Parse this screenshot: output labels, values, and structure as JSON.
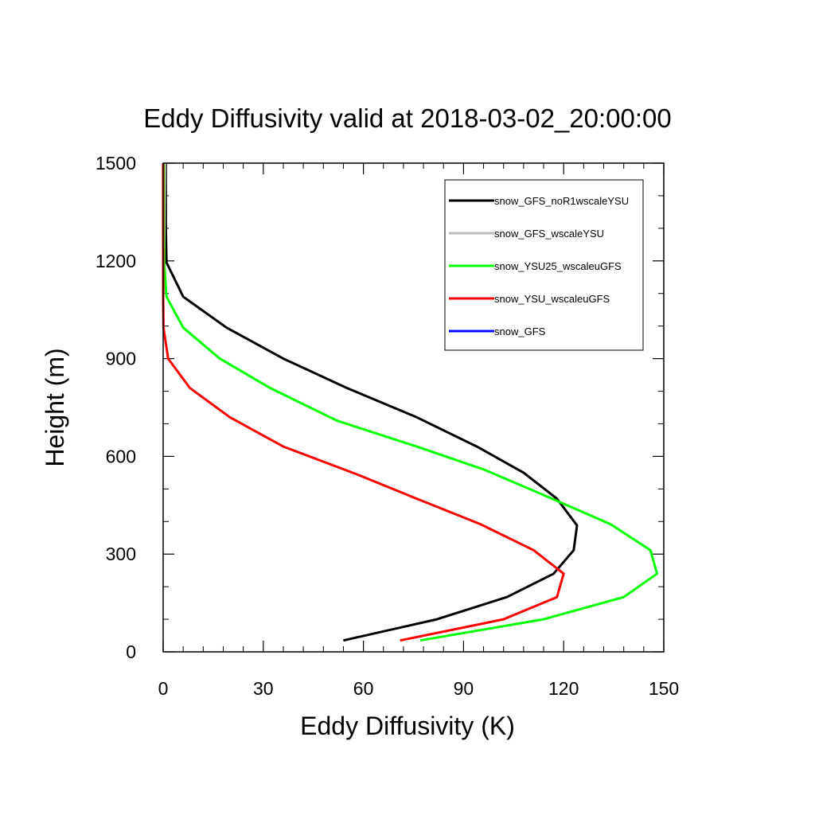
{
  "chart_data": {
    "type": "line",
    "title": "Eddy Diffusivity valid at 2018-03-02_20:00:00",
    "xlabel": "Eddy Diffusivity (K)",
    "ylabel": "Height (m)",
    "xlim": [
      0,
      150
    ],
    "ylim": [
      0,
      1500
    ],
    "xticks": [
      "0",
      "30",
      "60",
      "90",
      "120",
      "150"
    ],
    "yticks": [
      "0",
      "300",
      "600",
      "900",
      "1200",
      "1500"
    ],
    "grid": false,
    "legend_position": "top-right",
    "series": [
      {
        "name": "snow_GFS_noR1wscaleYSU",
        "color": "#000000",
        "points": [
          [
            54,
            35
          ],
          [
            82,
            100
          ],
          [
            103,
            168
          ],
          [
            117,
            240
          ],
          [
            123,
            312
          ],
          [
            124,
            388
          ],
          [
            118,
            470
          ],
          [
            108,
            550
          ],
          [
            94,
            630
          ],
          [
            76,
            720
          ],
          [
            55,
            810
          ],
          [
            36,
            900
          ],
          [
            19,
            995
          ],
          [
            6,
            1090
          ],
          [
            1,
            1195
          ],
          [
            0.8,
            1300
          ],
          [
            0.8,
            1400
          ],
          [
            0.8,
            1500
          ]
        ]
      },
      {
        "name": "snow_GFS_wscaleYSU",
        "color": "#bbbbbb",
        "points": [
          [
            0.2,
            1100
          ],
          [
            0.3,
            1200
          ],
          [
            0.4,
            1300
          ],
          [
            0.5,
            1400
          ],
          [
            0.6,
            1500
          ]
        ]
      },
      {
        "name": "snow_YSU25_wscaleuGFS",
        "color": "#00ff00",
        "points": [
          [
            77,
            35
          ],
          [
            114,
            100
          ],
          [
            138,
            168
          ],
          [
            148,
            240
          ],
          [
            146,
            312
          ],
          [
            134,
            392
          ],
          [
            112,
            490
          ],
          [
            96,
            560
          ],
          [
            76,
            630
          ],
          [
            52,
            710
          ],
          [
            32,
            810
          ],
          [
            17,
            900
          ],
          [
            6,
            995
          ],
          [
            1,
            1090
          ],
          [
            0.3,
            1195
          ],
          [
            0.2,
            1300
          ],
          [
            0.2,
            1400
          ],
          [
            0.2,
            1500
          ]
        ]
      },
      {
        "name": "snow_YSU_wscaleuGFS",
        "color": "#ff0000",
        "points": [
          [
            71,
            35
          ],
          [
            102,
            100
          ],
          [
            118,
            168
          ],
          [
            120,
            240
          ],
          [
            111,
            312
          ],
          [
            95,
            392
          ],
          [
            76,
            470
          ],
          [
            58,
            545
          ],
          [
            36,
            630
          ],
          [
            20,
            720
          ],
          [
            8,
            810
          ],
          [
            1.5,
            900
          ],
          [
            0.1,
            995
          ],
          [
            0,
            1090
          ],
          [
            0,
            1195
          ],
          [
            0,
            1300
          ],
          [
            0,
            1400
          ],
          [
            0,
            1500
          ]
        ]
      },
      {
        "name": "snow_GFS",
        "color": "#0000ff",
        "points": []
      }
    ]
  }
}
